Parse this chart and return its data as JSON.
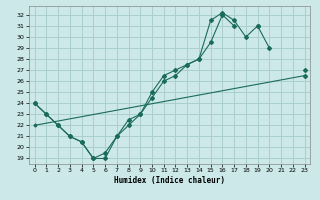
{
  "xlabel": "Humidex (Indice chaleur)",
  "bg_color": "#cce8e8",
  "grid_color": "#aacfcf",
  "line_color": "#1a6b5a",
  "xlim": [
    -0.5,
    23.5
  ],
  "ylim": [
    18.5,
    32.8
  ],
  "yticks": [
    19,
    20,
    21,
    22,
    23,
    24,
    25,
    26,
    27,
    28,
    29,
    30,
    31,
    32
  ],
  "xticks": [
    0,
    1,
    2,
    3,
    4,
    5,
    6,
    7,
    8,
    9,
    10,
    11,
    12,
    13,
    14,
    15,
    16,
    17,
    18,
    19,
    20,
    21,
    22,
    23
  ],
  "line1_x": [
    0,
    1,
    2,
    3,
    4,
    5,
    6,
    7,
    8,
    9,
    10,
    11,
    12,
    13,
    14,
    15,
    16,
    17,
    18,
    19,
    20,
    21,
    22,
    23
  ],
  "line1_y": [
    24,
    23,
    22,
    21,
    20.5,
    19,
    19,
    21,
    22.5,
    23,
    24.5,
    26,
    26.5,
    27.5,
    28,
    31.5,
    32.2,
    31.5,
    30,
    31,
    29,
    null,
    null,
    27
  ],
  "line2_x": [
    0,
    1,
    2,
    3,
    4,
    5,
    6,
    7,
    8,
    9,
    10,
    11,
    12,
    13,
    14,
    15,
    16,
    17,
    18,
    19,
    20,
    21,
    22,
    23
  ],
  "line2_y": [
    24,
    23,
    22,
    21,
    20.5,
    19,
    19.5,
    21,
    22,
    23,
    25,
    26.5,
    27,
    27.5,
    28,
    29.5,
    32,
    31,
    null,
    31,
    null,
    null,
    null,
    26.5
  ],
  "line3_x": [
    0,
    23
  ],
  "line3_y": [
    22,
    26.5
  ]
}
